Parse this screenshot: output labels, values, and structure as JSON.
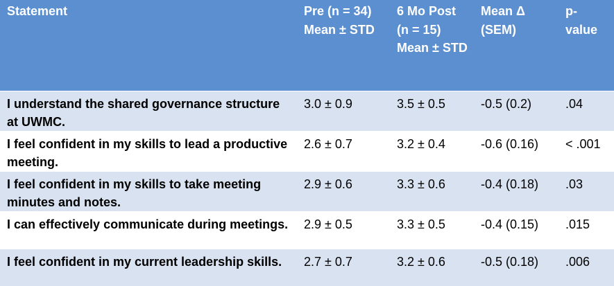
{
  "header": {
    "statement": "Statement",
    "pre": "Pre (n = 34) Mean ± STD",
    "post": "6 Mo Post (n = 15) Mean ± STD",
    "delta": "Mean Δ (SEM)",
    "pvalue": "p-value"
  },
  "rows": [
    {
      "statement": "I understand the shared governance structure at UWMC.",
      "pre": "3.0 ± 0.9",
      "post": "3.5 ± 0.5",
      "delta": "-0.5 (0.2)",
      "p": ".04"
    },
    {
      "statement": "I feel confident in my skills to lead a productive meeting.",
      "pre": "2.6 ± 0.7",
      "post": "3.2 ± 0.4",
      "delta": "-0.6 (0.16)",
      "p": "< .001"
    },
    {
      "statement": "I feel confident in my skills to take meeting minutes and notes.",
      "pre": "2.9 ± 0.6",
      "post": "3.3 ± 0.6",
      "delta": "-0.4 (0.18)",
      "p": ".03"
    },
    {
      "statement": "I can effectively communicate during meetings.",
      "pre": "2.9 ± 0.5",
      "post": "3.3 ± 0.5",
      "delta": "-0.4 (0.15)",
      "p": ".015"
    },
    {
      "statement": "I feel confident in my current leadership skills.",
      "pre": "2.7 ± 0.7",
      "post": "3.2 ± 0.6",
      "delta": "-0.5 (0.18)",
      "p": ".006"
    }
  ]
}
